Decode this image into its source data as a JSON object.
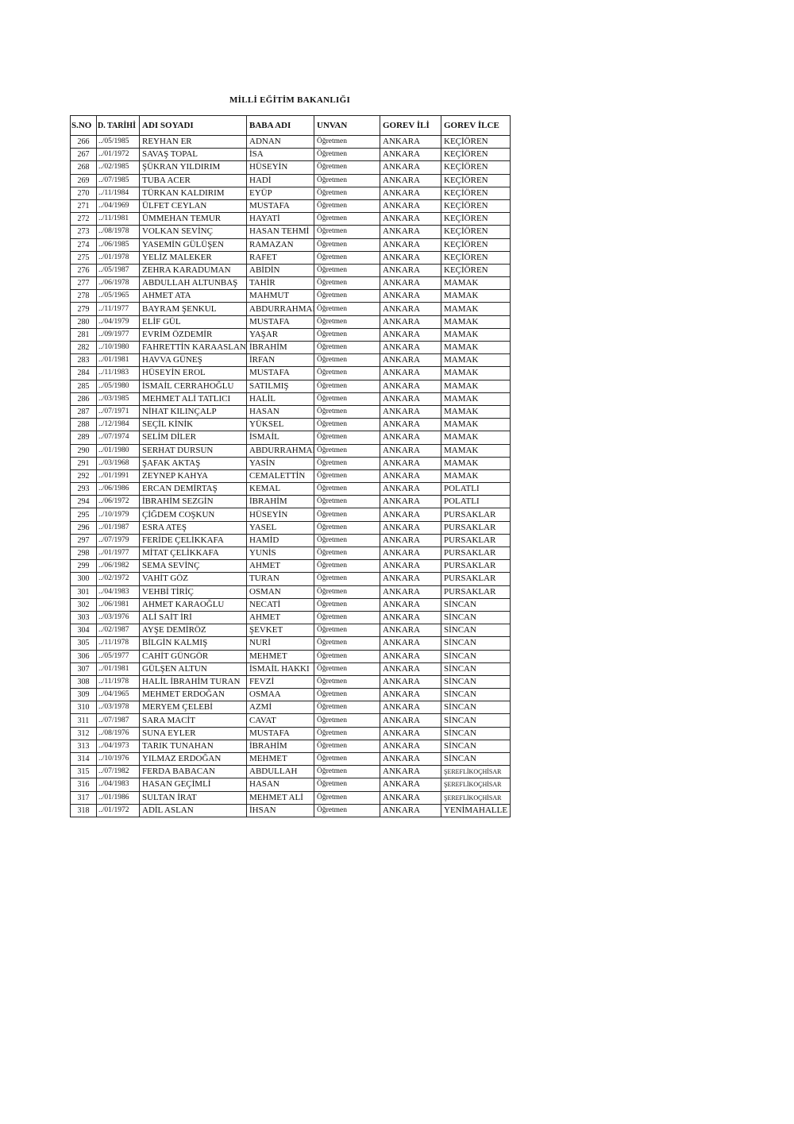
{
  "title": "MİLLİ EĞİTİM BAKANLIĞI",
  "columns": [
    "S.NO",
    "D. TARİHİ",
    "ADI SOYADI",
    "BABA ADI",
    "UNVAN",
    "GOREV İLİ",
    "GOREV İLCE"
  ],
  "rows": [
    [
      "266",
      "../05/1985",
      "REYHAN ER",
      "ADNAN",
      "Öğretmen",
      "ANKARA",
      "KEÇİÖREN"
    ],
    [
      "267",
      "../01/1972",
      "SAVAŞ TOPAL",
      "İSA",
      "Öğretmen",
      "ANKARA",
      "KEÇİÖREN"
    ],
    [
      "268",
      "../02/1985",
      "ŞÜKRAN YILDIRIM",
      "HÜSEYİN",
      "Öğretmen",
      "ANKARA",
      "KEÇİÖREN"
    ],
    [
      "269",
      "../07/1985",
      "TUBA ACER",
      "HADİ",
      "Öğretmen",
      "ANKARA",
      "KEÇİÖREN"
    ],
    [
      "270",
      "../11/1984",
      "TÜRKAN KALDIRIM",
      "EYÜP",
      "Öğretmen",
      "ANKARA",
      "KEÇİÖREN"
    ],
    [
      "271",
      "../04/1969",
      "ÜLFET CEYLAN",
      "MUSTAFA",
      "Öğretmen",
      "ANKARA",
      "KEÇİÖREN"
    ],
    [
      "272",
      "../11/1981",
      "ÜMMEHAN TEMUR",
      "HAYATİ",
      "Öğretmen",
      "ANKARA",
      "KEÇİÖREN"
    ],
    [
      "273",
      "../08/1978",
      "VOLKAN SEVİNÇ",
      "HASAN TEHMİ",
      "Öğretmen",
      "ANKARA",
      "KEÇİÖREN"
    ],
    [
      "274",
      "../06/1985",
      "YASEMİN GÜLÜŞEN",
      "RAMAZAN",
      "Öğretmen",
      "ANKARA",
      "KEÇİÖREN"
    ],
    [
      "275",
      "../01/1978",
      "YELİZ MALEKER",
      "RAFET",
      "Öğretmen",
      "ANKARA",
      "KEÇİÖREN"
    ],
    [
      "276",
      "../05/1987",
      "ZEHRA KARADUMAN",
      "ABİDİN",
      "Öğretmen",
      "ANKARA",
      "KEÇİÖREN"
    ],
    [
      "277",
      "../06/1978",
      "ABDULLAH ALTUNBAŞ",
      "TAHİR",
      "Öğretmen",
      "ANKARA",
      "MAMAK"
    ],
    [
      "278",
      "../05/1965",
      "AHMET ATA",
      "MAHMUT",
      "Öğretmen",
      "ANKARA",
      "MAMAK"
    ],
    [
      "279",
      "../11/1977",
      "BAYRAM ŞENKUL",
      "ABDURRAHMAN",
      "Öğretmen",
      "ANKARA",
      "MAMAK"
    ],
    [
      "280",
      "../04/1979",
      "ELİF GÜL",
      "MUSTAFA",
      "Öğretmen",
      "ANKARA",
      "MAMAK"
    ],
    [
      "281",
      "../09/1977",
      "EVRİM ÖZDEMİR",
      "YAŞAR",
      "Öğretmen",
      "ANKARA",
      "MAMAK"
    ],
    [
      "282",
      "../10/1980",
      "FAHRETTİN KARAASLAN",
      "İBRAHİM",
      "Öğretmen",
      "ANKARA",
      "MAMAK"
    ],
    [
      "283",
      "../01/1981",
      "HAVVA GÜNEŞ",
      "İRFAN",
      "Öğretmen",
      "ANKARA",
      "MAMAK"
    ],
    [
      "284",
      "../11/1983",
      "HÜSEYİN EROL",
      "MUSTAFA",
      "Öğretmen",
      "ANKARA",
      "MAMAK"
    ],
    [
      "285",
      "../05/1980",
      "İSMAİL CERRAHOĞLU",
      "SATILMIŞ",
      "Öğretmen",
      "ANKARA",
      "MAMAK"
    ],
    [
      "286",
      "../03/1985",
      "MEHMET ALİ TATLICI",
      "HALİL",
      "Öğretmen",
      "ANKARA",
      "MAMAK"
    ],
    [
      "287",
      "../07/1971",
      "NİHAT KILINÇALP",
      "HASAN",
      "Öğretmen",
      "ANKARA",
      "MAMAK"
    ],
    [
      "288",
      "../12/1984",
      "SEÇİL KİNİK",
      "YÜKSEL",
      "Öğretmen",
      "ANKARA",
      "MAMAK"
    ],
    [
      "289",
      "../07/1974",
      "SELİM DİLER",
      "İSMAİL",
      "Öğretmen",
      "ANKARA",
      "MAMAK"
    ],
    [
      "290",
      "../01/1980",
      "SERHAT DURSUN",
      "ABDURRAHMAN",
      "Öğretmen",
      "ANKARA",
      "MAMAK"
    ],
    [
      "291",
      "../03/1968",
      "ŞAFAK AKTAŞ",
      "YASİN",
      "Öğretmen",
      "ANKARA",
      "MAMAK"
    ],
    [
      "292",
      "../01/1991",
      "ZEYNEP KAHYA",
      "CEMALETTİN",
      "Öğretmen",
      "ANKARA",
      "MAMAK"
    ],
    [
      "293",
      "../06/1986",
      "ERCAN DEMİRTAŞ",
      "KEMAL",
      "Öğretmen",
      "ANKARA",
      "POLATLI"
    ],
    [
      "294",
      "../06/1972",
      "İBRAHİM SEZGİN",
      "İBRAHİM",
      "Öğretmen",
      "ANKARA",
      "POLATLI"
    ],
    [
      "295",
      "../10/1979",
      "ÇİĞDEM COŞKUN",
      "HÜSEYİN",
      "Öğretmen",
      "ANKARA",
      "PURSAKLAR"
    ],
    [
      "296",
      "../01/1987",
      "ESRA ATEŞ",
      "YASEL",
      "Öğretmen",
      "ANKARA",
      "PURSAKLAR"
    ],
    [
      "297",
      "../07/1979",
      "FERİDE ÇELİKKAFA",
      "HAMİD",
      "Öğretmen",
      "ANKARA",
      "PURSAKLAR"
    ],
    [
      "298",
      "../01/1977",
      "MİTAT ÇELİKKAFA",
      "YUNİS",
      "Öğretmen",
      "ANKARA",
      "PURSAKLAR"
    ],
    [
      "299",
      "../06/1982",
      "SEMA SEVİNÇ",
      "AHMET",
      "Öğretmen",
      "ANKARA",
      "PURSAKLAR"
    ],
    [
      "300",
      "../02/1972",
      "VAHİT GÖZ",
      "TURAN",
      "Öğretmen",
      "ANKARA",
      "PURSAKLAR"
    ],
    [
      "301",
      "../04/1983",
      "VEHBİ TİRİÇ",
      "OSMAN",
      "Öğretmen",
      "ANKARA",
      "PURSAKLAR"
    ],
    [
      "302",
      "../06/1981",
      "AHMET KARAOĞLU",
      "NECATİ",
      "Öğretmen",
      "ANKARA",
      "SİNCAN"
    ],
    [
      "303",
      "../03/1976",
      "ALİ SAİT İRİ",
      "AHMET",
      "Öğretmen",
      "ANKARA",
      "SİNCAN"
    ],
    [
      "304",
      "../02/1987",
      "AYŞE DEMİRÖZ",
      "ŞEVKET",
      "Öğretmen",
      "ANKARA",
      "SİNCAN"
    ],
    [
      "305",
      "../11/1978",
      "BİLGİN KALMIŞ",
      "NURİ",
      "Öğretmen",
      "ANKARA",
      "SİNCAN"
    ],
    [
      "306",
      "../05/1977",
      "CAHİT GÜNGÖR",
      "MEHMET",
      "Öğretmen",
      "ANKARA",
      "SİNCAN"
    ],
    [
      "307",
      "../01/1981",
      "GÜLŞEN ALTUN",
      "İSMAİL HAKKI",
      "Öğretmen",
      "ANKARA",
      "SİNCAN"
    ],
    [
      "308",
      "../11/1978",
      "HALİL İBRAHİM TURAN",
      "FEVZİ",
      "Öğretmen",
      "ANKARA",
      "SİNCAN"
    ],
    [
      "309",
      "../04/1965",
      "MEHMET ERDOĞAN",
      "OSMAA",
      "Öğretmen",
      "ANKARA",
      "SİNCAN"
    ],
    [
      "310",
      "../03/1978",
      "MERYEM ÇELEBİ",
      "AZMİ",
      "Öğretmen",
      "ANKARA",
      "SİNCAN"
    ],
    [
      "311",
      "../07/1987",
      "SARA MACİT",
      "CAVAT",
      "Öğretmen",
      "ANKARA",
      "SİNCAN"
    ],
    [
      "312",
      "../08/1976",
      "SUNA EYLER",
      "MUSTAFA",
      "Öğretmen",
      "ANKARA",
      "SİNCAN"
    ],
    [
      "313",
      "../04/1973",
      "TARIK TUNAHAN",
      "İBRAHİM",
      "Öğretmen",
      "ANKARA",
      "SİNCAN"
    ],
    [
      "314",
      "../10/1976",
      "YILMAZ ERDOĞAN",
      "MEHMET",
      "Öğretmen",
      "ANKARA",
      "SİNCAN"
    ],
    [
      "315",
      "../07/1982",
      "FERDA BABACAN",
      "ABDULLAH",
      "Öğretmen",
      "ANKARA",
      "ŞEREFLİKOÇHİSAR"
    ],
    [
      "316",
      "../04/1983",
      "HASAN GEÇİMLİ",
      "HASAN",
      "Öğretmen",
      "ANKARA",
      "ŞEREFLİKOÇHİSAR"
    ],
    [
      "317",
      "../01/1986",
      "SULTAN İRAT",
      "MEHMET ALİ",
      "Öğretmen",
      "ANKARA",
      "ŞEREFLİKOÇHİSAR"
    ],
    [
      "318",
      "../01/1972",
      "ADİL ASLAN",
      "İHSAN",
      "Öğretmen",
      "ANKARA",
      "YENİMAHALLE"
    ]
  ]
}
